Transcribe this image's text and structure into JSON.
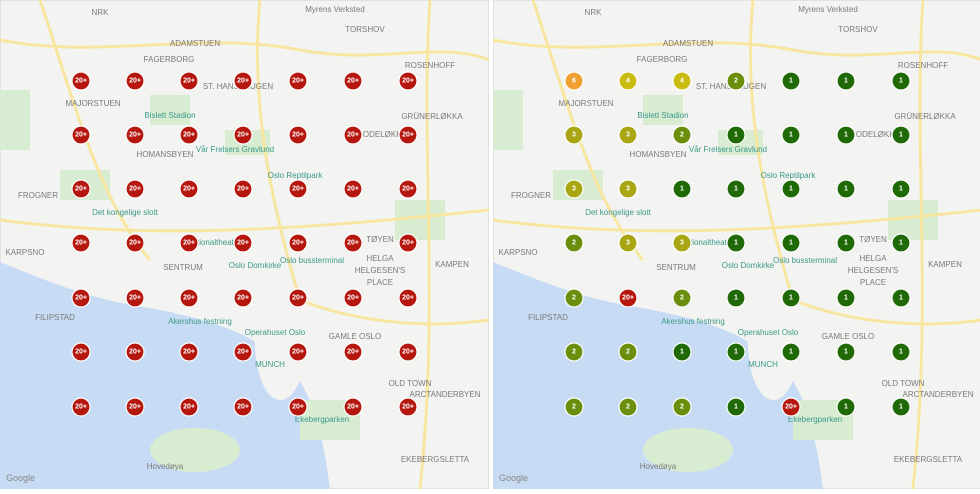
{
  "map_labels": [
    "NRK",
    "Myrens Verksted",
    "ADAMSTUEN",
    "TORSHOV",
    "ROSENHOFF",
    "FAGERBORG",
    "MAJORSTUEN",
    "ST. HANSHAUGEN",
    "Bislett Stadion",
    "HOMANSBYEN",
    "Vår Frelsers Gravlund",
    "GRÜNERLØKKA",
    "RODELØKKA",
    "FROGNER",
    "Det kongelige slott",
    "Oslo Reptilpark",
    "KARPSNO",
    "Nationaltheatret",
    "SENTRUM",
    "Oslo Domkirke",
    "Oslo bussterminal",
    "TØYEN",
    "KAMPEN",
    "HELGA",
    "HELGESEN'S",
    "PLACE",
    "FILIPSTAD",
    "Akershus festning",
    "Operahuset Oslo",
    "GAMLE OSLO",
    "MUNCH",
    "OLD TOWN",
    "ARCTANDERBYEN",
    "Ekebergparken",
    "Hovedøya",
    "EKEBERGSLETTA"
  ],
  "attribution": "Google",
  "palette": {
    "20+": "#b5170f",
    "6": "#f0a030",
    "4": "#c9bb10",
    "3": "#a8a612",
    "2": "#6b8e0c",
    "1": "#1f6a06"
  },
  "panels": [
    {
      "markers": [
        [
          "20+",
          "20+",
          "20+",
          "20+",
          "20+",
          "20+",
          "20+"
        ],
        [
          "20+",
          "20+",
          "20+",
          "20+",
          "20+",
          "20+",
          "20+"
        ],
        [
          "20+",
          "20+",
          "20+",
          "20+",
          "20+",
          "20+",
          "20+"
        ],
        [
          "20+",
          "20+",
          "20+",
          "20+",
          "20+",
          "20+",
          "20+"
        ],
        [
          "20+",
          "20+",
          "20+",
          "20+",
          "20+",
          "20+",
          "20+"
        ],
        [
          "20+",
          "20+",
          "20+",
          "20+",
          "20+",
          "20+",
          "20+"
        ],
        [
          "20+",
          "20+",
          "20+",
          "20+",
          "20+",
          "20+",
          "20+"
        ]
      ]
    },
    {
      "markers": [
        [
          "6",
          "4",
          "4",
          "2",
          "1",
          "1",
          "1"
        ],
        [
          "3",
          "3",
          "2",
          "1",
          "1",
          "1",
          "1"
        ],
        [
          "3",
          "3",
          "1",
          "1",
          "1",
          "1",
          "1"
        ],
        [
          "2",
          "3",
          "3",
          "1",
          "1",
          "1",
          "1"
        ],
        [
          "2",
          "20+",
          "2",
          "1",
          "1",
          "1",
          "1"
        ],
        [
          "2",
          "2",
          "1",
          "1",
          "1",
          "1",
          "1"
        ],
        [
          "2",
          "2",
          "2",
          "1",
          "20+",
          "1",
          "1"
        ]
      ]
    }
  ]
}
